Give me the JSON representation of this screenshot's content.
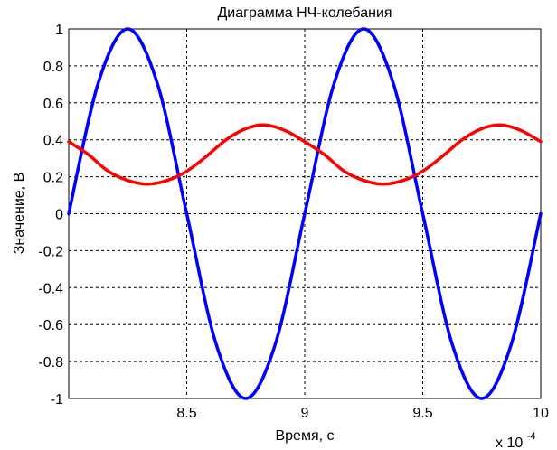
{
  "chart_data": {
    "type": "line",
    "title": "Диаграмма НЧ-колебания",
    "xlabel": "Время, с",
    "ylabel": "Значение, В",
    "x_exponent_label": "x 10",
    "x_exponent_power": "-4",
    "xlim": [
      8.0,
      10.0
    ],
    "ylim": [
      -1,
      1
    ],
    "xticks": [
      8.5,
      9.0,
      9.5,
      10.0
    ],
    "xtick_labels": [
      "8.5",
      "9",
      "9.5",
      "10"
    ],
    "yticks": [
      -1,
      -0.8,
      -0.6,
      -0.4,
      -0.2,
      0,
      0.2,
      0.4,
      0.6,
      0.8,
      1
    ],
    "ytick_labels": [
      "-1",
      "-0.8",
      "-0.6",
      "-0.4",
      "-0.2",
      "0",
      "0.2",
      "0.4",
      "0.6",
      "0.8",
      "1"
    ],
    "grid": true,
    "series": [
      {
        "color": "#0000ff",
        "x": [
          8.0,
          8.125,
          8.25,
          8.375,
          8.5,
          8.625,
          8.75,
          8.875,
          9.0,
          9.125,
          9.25,
          9.375,
          9.5,
          9.625,
          9.75,
          9.875,
          10.0
        ],
        "values": [
          0.0,
          0.707,
          1.0,
          0.707,
          0.0,
          -0.707,
          -1.0,
          -0.707,
          0.0,
          0.707,
          1.0,
          0.707,
          0.0,
          -0.707,
          -1.0,
          -0.707,
          0.0
        ]
      },
      {
        "color": "#ff0000",
        "x": [
          8.0,
          8.083,
          8.167,
          8.25,
          8.333,
          8.417,
          8.5,
          8.583,
          8.667,
          8.75,
          8.833,
          8.917,
          9.0,
          9.083,
          9.167,
          9.25,
          9.333,
          9.417,
          9.5,
          9.583,
          9.667,
          9.75,
          9.833,
          9.917,
          10.0
        ],
        "values": [
          0.39,
          0.32,
          0.23,
          0.18,
          0.16,
          0.18,
          0.23,
          0.31,
          0.4,
          0.46,
          0.48,
          0.45,
          0.39,
          0.32,
          0.23,
          0.18,
          0.16,
          0.18,
          0.23,
          0.31,
          0.4,
          0.46,
          0.48,
          0.45,
          0.39
        ]
      }
    ]
  }
}
